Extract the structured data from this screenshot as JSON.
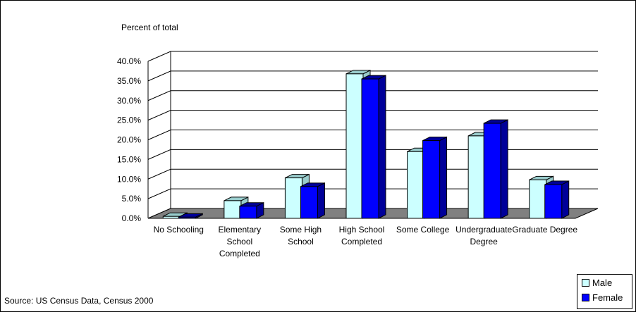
{
  "chart_data": {
    "type": "bar",
    "ylabel": "Percent of total",
    "categories": [
      [
        "No Schooling"
      ],
      [
        "Elementary",
        "School",
        "Completed"
      ],
      [
        "Some High",
        "School"
      ],
      [
        "High School",
        "Completed"
      ],
      [
        "Some College"
      ],
      [
        "Undergraduate",
        "Degree"
      ],
      [
        "Graduate Degree"
      ]
    ],
    "series": [
      {
        "name": "Male",
        "values": [
          0.5,
          4.5,
          10.3,
          36.8,
          17.0,
          21.0,
          9.8
        ],
        "color": "#ccffff",
        "top_color": "#99cccc",
        "side_color": "#99cccc"
      },
      {
        "name": "Female",
        "values": [
          0.3,
          3.1,
          8.1,
          35.5,
          19.8,
          24.2,
          8.6
        ],
        "color": "#0000ff",
        "top_color": "#000099",
        "side_color": "#000099"
      }
    ],
    "ylim": [
      0,
      40
    ],
    "yticks": [
      "0.0%",
      "5.0%",
      "10.0%",
      "15.0%",
      "20.0%",
      "25.0%",
      "30.0%",
      "35.0%",
      "40.0%"
    ],
    "grid": true,
    "legend": "bottom-right",
    "floor_color": "#808080"
  },
  "source": "Source: US Census Data, Census 2000"
}
